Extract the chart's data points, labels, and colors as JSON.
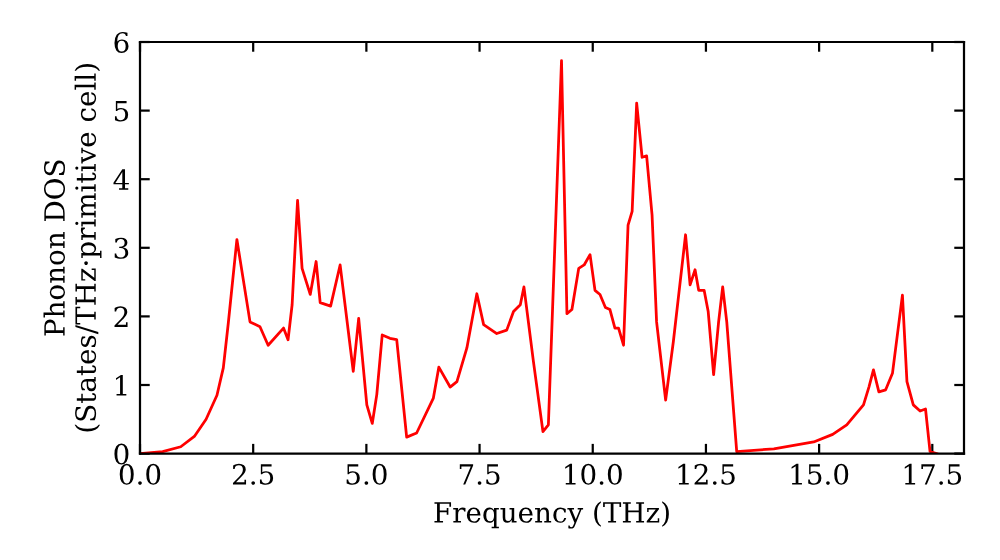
{
  "chart_data": {
    "type": "line",
    "xlabel": "Frequency (THz)",
    "ylabel": "Phonon DOS\n(States/THz·primitive cell)",
    "xlim": [
      0,
      18.2
    ],
    "ylim": [
      0,
      6
    ],
    "xticks": [
      {
        "value": 0,
        "label": "0.0"
      },
      {
        "value": 2.5,
        "label": "2.5"
      },
      {
        "value": 5,
        "label": "5.0"
      },
      {
        "value": 7.5,
        "label": "7.5"
      },
      {
        "value": 10,
        "label": "10.0"
      },
      {
        "value": 12.5,
        "label": "12.5"
      },
      {
        "value": 15,
        "label": "15.0"
      },
      {
        "value": 17.5,
        "label": "17.5"
      }
    ],
    "yticks": [
      0,
      1,
      2,
      3,
      4,
      5,
      6
    ],
    "grid": false,
    "marker": "none",
    "line_style": "solid",
    "series": [
      {
        "color": "#ff0000",
        "x": [
          0,
          0.5,
          0.9,
          1.2,
          1.46,
          1.7,
          1.84,
          1.95,
          2.14,
          2.43,
          2.65,
          2.83,
          3.17,
          3.27,
          3.36,
          3.48,
          3.58,
          3.76,
          3.89,
          3.98,
          4.21,
          4.42,
          4.71,
          4.83,
          5.01,
          5.13,
          5.23,
          5.35,
          5.52,
          5.67,
          5.89,
          6.11,
          6.48,
          6.6,
          6.85,
          7.0,
          7.22,
          7.44,
          7.59,
          7.88,
          8.1,
          8.25,
          8.4,
          8.48,
          8.69,
          8.9,
          9.02,
          9.31,
          9.43,
          9.54,
          9.69,
          9.81,
          9.94,
          10.05,
          10.16,
          10.28,
          10.38,
          10.49,
          10.57,
          10.68,
          10.78,
          10.87,
          10.97,
          11.09,
          11.19,
          11.31,
          11.41,
          11.61,
          11.78,
          12.05,
          12.15,
          12.26,
          12.34,
          12.46,
          12.55,
          12.67,
          12.78,
          12.87,
          12.96,
          13.18,
          14.0,
          14.88,
          15.3,
          15.61,
          15.98,
          16.1,
          16.2,
          16.32,
          16.47,
          16.62,
          16.84,
          16.94,
          17.08,
          17.23,
          17.35,
          17.45,
          17.6
        ],
        "values": [
          0,
          0.03,
          0.1,
          0.25,
          0.5,
          0.85,
          1.25,
          1.9,
          3.12,
          1.92,
          1.85,
          1.58,
          1.83,
          1.66,
          2.17,
          3.69,
          2.7,
          2.32,
          2.8,
          2.2,
          2.15,
          2.75,
          1.2,
          1.97,
          0.71,
          0.44,
          0.86,
          1.73,
          1.68,
          1.66,
          0.24,
          0.3,
          0.81,
          1.26,
          0.97,
          1.05,
          1.54,
          2.33,
          1.88,
          1.75,
          1.8,
          2.07,
          2.17,
          2.43,
          1.34,
          0.32,
          0.42,
          5.73,
          2.04,
          2.1,
          2.7,
          2.75,
          2.9,
          2.38,
          2.32,
          2.13,
          2.1,
          1.83,
          1.83,
          1.58,
          3.33,
          3.53,
          5.11,
          4.32,
          4.34,
          3.48,
          1.92,
          0.78,
          1.63,
          3.19,
          2.46,
          2.68,
          2.38,
          2.38,
          2.07,
          1.15,
          1.92,
          2.43,
          1.92,
          0.03,
          0.07,
          0.17,
          0.28,
          0.42,
          0.71,
          0.97,
          1.22,
          0.9,
          0.93,
          1.17,
          2.31,
          1.05,
          0.71,
          0.62,
          0.65,
          0.03,
          0
        ]
      }
    ]
  }
}
